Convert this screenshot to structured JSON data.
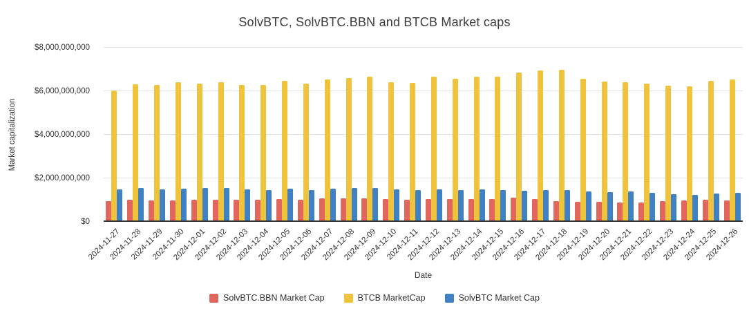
{
  "title": "SolvBTC, SolvBTC.BBN and BTCB Market caps",
  "y_axis_title": "Market capitalization",
  "x_axis_title": "Date",
  "y_tick_labels": [
    "$0",
    "$2,000,000,000",
    "$4,000,000,000",
    "$6,000,000,000",
    "$8,000,000,000"
  ],
  "colors": {
    "solvbtc_bbn": "#E0665E",
    "btcb": "#F0C33C",
    "solvbtc": "#3F81C2",
    "gridline": "#e2e2e2",
    "axis": "#333333",
    "text": "#333333"
  },
  "chart_data": {
    "type": "bar",
    "title": "SolvBTC, SolvBTC.BBN and BTCB Market caps",
    "xlabel": "Date",
    "ylabel": "Market capitalization",
    "ylim": [
      0,
      8000000000
    ],
    "grid": true,
    "legend_position": "bottom-center",
    "categories": [
      "2024-11-27",
      "2024-11-28",
      "2024-11-29",
      "2024-11-30",
      "2024-12-01",
      "2024-12-02",
      "2024-12-03",
      "2024-12-04",
      "2024-12-05",
      "2024-12-06",
      "2024-12-07",
      "2024-12-08",
      "2024-12-09",
      "2024-12-10",
      "2024-12-11",
      "2024-12-12",
      "2024-12-13",
      "2024-12-14",
      "2024-12-15",
      "2024-12-16",
      "2024-12-17",
      "2024-12-18",
      "2024-12-19",
      "2024-12-20",
      "2024-12-21",
      "2024-12-22",
      "2024-12-23",
      "2024-12-24",
      "2024-12-25",
      "2024-12-26"
    ],
    "series": [
      {
        "name": "SolvBTC.BBN Market Cap",
        "color": "#E0665E",
        "values": [
          880000000,
          950000000,
          930000000,
          920000000,
          960000000,
          950000000,
          960000000,
          950000000,
          980000000,
          940000000,
          1000000000,
          1000000000,
          1010000000,
          990000000,
          960000000,
          980000000,
          990000000,
          970000000,
          970000000,
          1040000000,
          990000000,
          880000000,
          860000000,
          860000000,
          840000000,
          820000000,
          880000000,
          910000000,
          940000000,
          930000000
        ]
      },
      {
        "name": "BTCB MarketCap",
        "color": "#F0C33C",
        "values": [
          5970000000,
          6260000000,
          6220000000,
          6360000000,
          6300000000,
          6350000000,
          6220000000,
          6230000000,
          6410000000,
          6300000000,
          6480000000,
          6530000000,
          6590000000,
          6350000000,
          6320000000,
          6590000000,
          6500000000,
          6600000000,
          6600000000,
          6780000000,
          6890000000,
          6930000000,
          6500000000,
          6380000000,
          6350000000,
          6300000000,
          6190000000,
          6150000000,
          6410000000,
          6480000000
        ]
      },
      {
        "name": "SolvBTC Market Cap",
        "color": "#3F81C2",
        "values": [
          1430000000,
          1480000000,
          1440000000,
          1460000000,
          1480000000,
          1500000000,
          1420000000,
          1400000000,
          1470000000,
          1410000000,
          1460000000,
          1490000000,
          1500000000,
          1430000000,
          1390000000,
          1420000000,
          1400000000,
          1420000000,
          1410000000,
          1360000000,
          1390000000,
          1400000000,
          1340000000,
          1310000000,
          1340000000,
          1260000000,
          1210000000,
          1180000000,
          1240000000,
          1260000000
        ]
      }
    ]
  }
}
